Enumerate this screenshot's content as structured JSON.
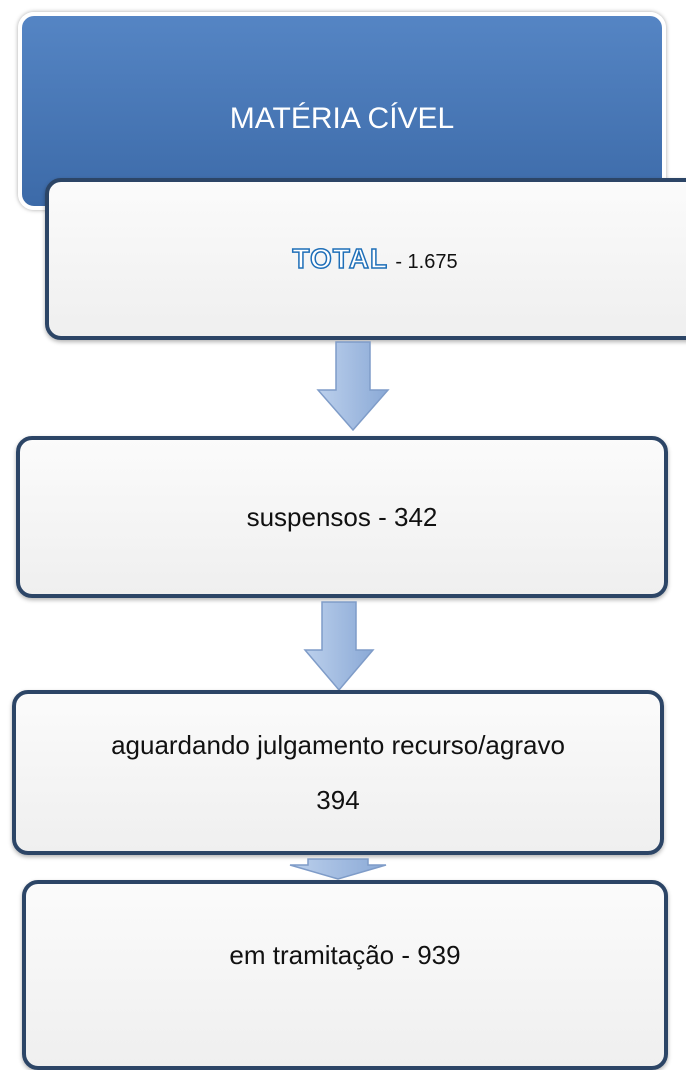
{
  "header": {
    "title": "MATÉRIA CÍVEL"
  },
  "nodes": [
    {
      "label": "TOTAL",
      "text": "- 1.675"
    },
    {
      "label": "suspensos - 342"
    },
    {
      "label": "aguardando julgamento recurso/agravo",
      "text": "394"
    },
    {
      "label": "em tramitação - 939"
    }
  ]
}
